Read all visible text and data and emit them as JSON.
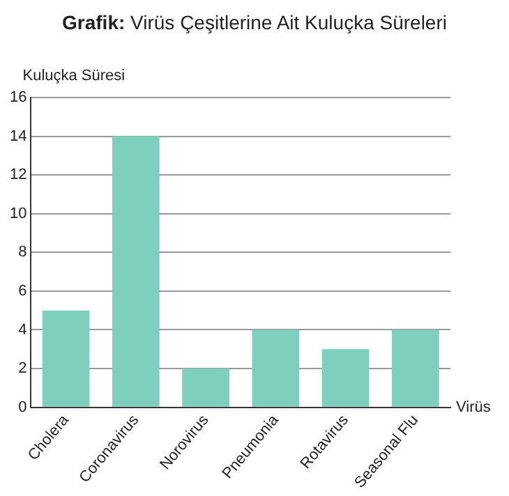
{
  "chart_data": {
    "type": "bar",
    "title": "Grafik: Virüs Çeşitlerine Ait Kuluçka Süreleri",
    "xlabel": "Virüs",
    "ylabel": "Kuluçka Süresi",
    "categories": [
      "Cholera",
      "Coronavirus",
      "Norovirus",
      "Pneumonia",
      "Rotavirus",
      "Seasonal Flu"
    ],
    "values": [
      5,
      14,
      2,
      4,
      3,
      4
    ],
    "color": "#7fcfbf",
    "ylim": [
      0,
      16
    ],
    "yticks": [
      0,
      2,
      4,
      6,
      8,
      10,
      12,
      14,
      16
    ],
    "grid": "y"
  }
}
